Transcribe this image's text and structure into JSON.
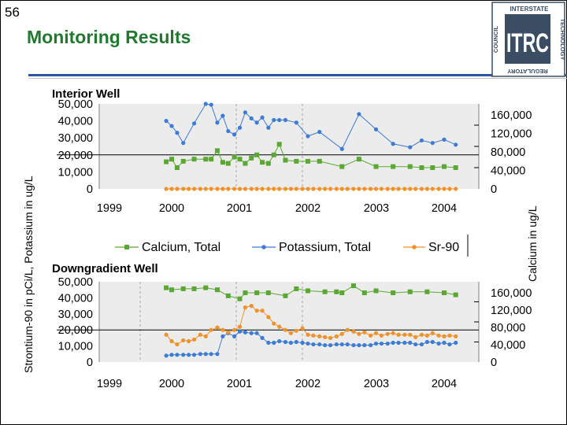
{
  "slide": {
    "number": "56",
    "title": "Monitoring Results"
  },
  "logo": {
    "text_main": "ITRC",
    "text_top": "INTERSTATE",
    "text_right": "TECHNOLOGY",
    "text_bottom": "REGULATORY",
    "text_left": "COUNCIL"
  },
  "colors": {
    "calcium": "#5aa832",
    "potassium": "#3d7cd6",
    "sr90": "#f0922a",
    "plot_bg": "#ececec",
    "title": "#1f7a2e"
  },
  "chart_data": [
    {
      "type": "line",
      "title": "Interior Well",
      "ylabel": "Strontium-90 in pCi/L, Potassium in ug/L",
      "y2label": "Calcium in ug/L",
      "xlim": [
        1999.0,
        2004.3
      ],
      "ylim": [
        0,
        50000
      ],
      "y2lim": [
        0,
        160000
      ],
      "xticks": [
        1999,
        2000,
        2001,
        2002,
        2003,
        2004
      ],
      "xticklabels": [
        "1999",
        "2000",
        "2001",
        "2002",
        "2003",
        "2004"
      ],
      "yticklabels": [
        "50,000",
        "40,000",
        "30,000",
        "20,000",
        "10,000",
        "0"
      ],
      "y2ticklabels": [
        "160,000",
        "120,000",
        "80,000",
        "40,000",
        "0"
      ],
      "reference_y": 20000,
      "series": [
        {
          "name": "Potassium, Total",
          "axis": "left",
          "x": [
            1999.92,
            2000.0,
            2000.08,
            2000.17,
            2000.33,
            2000.5,
            2000.58,
            2000.67,
            2000.75,
            2000.83,
            2000.92,
            2001.0,
            2001.08,
            2001.17,
            2001.25,
            2001.33,
            2001.42,
            2001.5,
            2001.58,
            2001.67,
            2001.83,
            2002.0,
            2002.17,
            2002.5,
            2002.75,
            2003.0,
            2003.25,
            2003.5,
            2003.67,
            2003.83,
            2004.0,
            2004.17
          ],
          "y": [
            40000,
            37000,
            33000,
            27000,
            38500,
            50000,
            49500,
            39000,
            43000,
            34000,
            32000,
            36000,
            45000,
            41500,
            39000,
            42000,
            36000,
            40500,
            40500,
            40500,
            39000,
            31000,
            33500,
            23500,
            44000,
            35000,
            26500,
            24500,
            28500,
            27000,
            29000,
            26000
          ]
        },
        {
          "name": "Calcium, Total",
          "axis": "right",
          "x": [
            1999.92,
            2000.0,
            2000.08,
            2000.17,
            2000.33,
            2000.5,
            2000.58,
            2000.67,
            2000.75,
            2000.83,
            2000.92,
            2001.0,
            2001.08,
            2001.17,
            2001.25,
            2001.33,
            2001.42,
            2001.5,
            2001.58,
            2001.67,
            2001.83,
            2002.0,
            2002.17,
            2002.5,
            2002.75,
            2003.0,
            2003.25,
            2003.5,
            2003.67,
            2003.83,
            2004.0,
            2004.17
          ],
          "y": [
            51000,
            56000,
            40000,
            52000,
            56000,
            56000,
            56000,
            72000,
            50000,
            48000,
            60000,
            56000,
            48000,
            58000,
            64000,
            50000,
            48000,
            64000,
            84000,
            54000,
            52000,
            52000,
            52000,
            42000,
            56000,
            42000,
            42000,
            42000,
            40000,
            40000,
            42000,
            40000
          ]
        },
        {
          "name": "Sr-90",
          "axis": "left",
          "x": [
            1999.92,
            2000.0,
            2000.08,
            2000.17,
            2000.25,
            2000.33,
            2000.42,
            2000.5,
            2000.58,
            2000.67,
            2000.75,
            2000.83,
            2000.92,
            2001.0,
            2001.08,
            2001.17,
            2001.25,
            2001.33,
            2001.42,
            2001.5,
            2001.58,
            2001.67,
            2001.75,
            2001.83,
            2001.92,
            2002.0,
            2002.08,
            2002.17,
            2002.25,
            2002.33,
            2002.42,
            2002.5,
            2002.58,
            2002.67,
            2002.75,
            2002.83,
            2002.92,
            2003.0,
            2003.08,
            2003.17,
            2003.25,
            2003.33,
            2003.42,
            2003.5,
            2003.58,
            2003.67,
            2003.75,
            2003.83,
            2003.92,
            2004.0,
            2004.08,
            2004.17
          ],
          "y": [
            0,
            0,
            0,
            0,
            0,
            0,
            0,
            0,
            0,
            0,
            0,
            0,
            0,
            0,
            0,
            0,
            0,
            0,
            0,
            0,
            0,
            0,
            0,
            0,
            0,
            0,
            0,
            0,
            0,
            0,
            0,
            0,
            0,
            0,
            0,
            0,
            0,
            0,
            0,
            0,
            0,
            0,
            0,
            0,
            0,
            0,
            0,
            0,
            0,
            0,
            0,
            0
          ]
        }
      ]
    },
    {
      "type": "line",
      "title": "Downgradient Well",
      "xlim": [
        1999.0,
        2004.3
      ],
      "ylim": [
        0,
        50000
      ],
      "y2lim": [
        0,
        160000
      ],
      "xticks": [
        1999,
        2000,
        2001,
        2002,
        2003,
        2004
      ],
      "xticklabels": [
        "1999",
        "2000",
        "2001",
        "2002",
        "2003",
        "2004"
      ],
      "yticklabels": [
        "50,000",
        "40,000",
        "30,000",
        "20,000",
        "10,000",
        "0"
      ],
      "y2ticklabels": [
        "160,000",
        "120,000",
        "80,000",
        "40,000",
        "0"
      ],
      "reference_y": 20000,
      "series": [
        {
          "name": "Calcium, Total",
          "axis": "right",
          "x": [
            1999.92,
            2000.0,
            2000.17,
            2000.33,
            2000.5,
            2000.67,
            2000.83,
            2001.0,
            2001.08,
            2001.25,
            2001.42,
            2001.67,
            2001.83,
            2002.0,
            2002.25,
            2002.42,
            2002.5,
            2002.67,
            2002.83,
            2003.0,
            2003.25,
            2003.5,
            2003.75,
            2004.0,
            2004.17
          ],
          "y": [
            148000,
            144000,
            146000,
            146000,
            148000,
            144000,
            132000,
            126000,
            138000,
            138000,
            138000,
            132000,
            146000,
            142000,
            140000,
            140000,
            138000,
            152000,
            138000,
            142000,
            138000,
            140000,
            140000,
            138000,
            134000
          ]
        },
        {
          "name": "Potassium, Total",
          "axis": "left",
          "x": [
            1999.92,
            2000.0,
            2000.08,
            2000.17,
            2000.25,
            2000.33,
            2000.42,
            2000.5,
            2000.58,
            2000.67,
            2000.75,
            2000.83,
            2000.92,
            2001.0,
            2001.08,
            2001.17,
            2001.25,
            2001.33,
            2001.42,
            2001.5,
            2001.58,
            2001.67,
            2001.75,
            2001.83,
            2001.92,
            2002.0,
            2002.08,
            2002.17,
            2002.25,
            2002.33,
            2002.42,
            2002.5,
            2002.58,
            2002.67,
            2002.75,
            2002.83,
            2002.92,
            2003.0,
            2003.08,
            2003.17,
            2003.25,
            2003.33,
            2003.42,
            2003.5,
            2003.58,
            2003.67,
            2003.75,
            2003.83,
            2003.92,
            2004.0,
            2004.08,
            2004.17
          ],
          "y": [
            4000,
            4500,
            4500,
            4500,
            4500,
            4500,
            5000,
            5000,
            5000,
            5000,
            16000,
            18000,
            16000,
            19000,
            18500,
            18000,
            18000,
            15000,
            12000,
            12000,
            13000,
            12500,
            12000,
            12500,
            12000,
            11500,
            11000,
            11000,
            10500,
            10500,
            11000,
            11000,
            11000,
            10500,
            10500,
            10500,
            10500,
            11500,
            11500,
            11500,
            12000,
            12000,
            12000,
            12000,
            11000,
            11000,
            12500,
            12500,
            11500,
            12000,
            11000,
            12000
          ]
        },
        {
          "name": "Sr-90",
          "axis": "left",
          "x": [
            1999.92,
            2000.0,
            2000.08,
            2000.17,
            2000.25,
            2000.33,
            2000.42,
            2000.5,
            2000.58,
            2000.67,
            2000.75,
            2000.83,
            2000.92,
            2001.0,
            2001.08,
            2001.17,
            2001.25,
            2001.33,
            2001.42,
            2001.5,
            2001.58,
            2001.67,
            2001.75,
            2001.83,
            2001.92,
            2002.0,
            2002.08,
            2002.17,
            2002.25,
            2002.33,
            2002.42,
            2002.5,
            2002.58,
            2002.67,
            2002.75,
            2002.83,
            2002.92,
            2003.0,
            2003.08,
            2003.17,
            2003.25,
            2003.33,
            2003.42,
            2003.5,
            2003.58,
            2003.67,
            2003.75,
            2003.83,
            2003.92,
            2004.0,
            2004.08,
            2004.17
          ],
          "y": [
            17000,
            13000,
            11000,
            13500,
            13000,
            14000,
            17000,
            16000,
            20000,
            21500,
            20000,
            18500,
            20000,
            22000,
            34000,
            35000,
            32000,
            32000,
            28000,
            24000,
            22000,
            20000,
            18000,
            19500,
            21000,
            17000,
            16500,
            16000,
            15500,
            15000,
            16000,
            17500,
            20000,
            19000,
            17500,
            18500,
            16500,
            18000,
            16500,
            17500,
            18000,
            17000,
            17000,
            17000,
            15500,
            17000,
            16500,
            18000,
            16500,
            16000,
            16500,
            16000
          ]
        }
      ]
    }
  ],
  "legend": [
    {
      "name": "Calcium, Total",
      "marker": "square",
      "color": "#5aa832"
    },
    {
      "name": "Potassium, Total",
      "marker": "circle",
      "color": "#3d7cd6"
    },
    {
      "name": "Sr-90",
      "marker": "circle",
      "color": "#f0922a"
    }
  ]
}
